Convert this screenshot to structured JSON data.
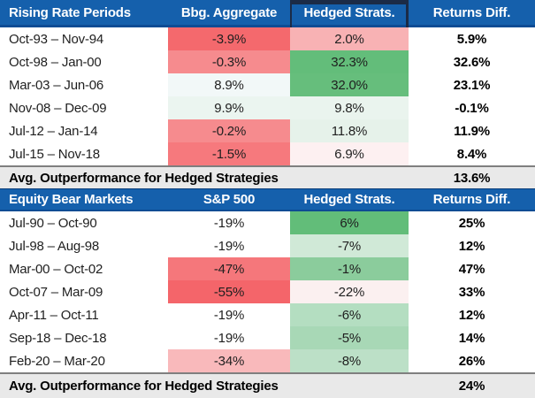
{
  "colors": {
    "header_bg": "#1560AC",
    "header_text": "#FFFFFF",
    "header_border": "#0E4C94",
    "dark_top_bar": "#1B2B47",
    "avg_row_bg": "#E9E9E9",
    "avg_row_border": "#7F7F7F",
    "strong_red": "#F4676C",
    "strong_green": "#62BD79"
  },
  "chart_data": [
    {
      "type": "table",
      "title": "Rising Rate Periods",
      "columns": [
        "Rising Rate Periods",
        "Bbg. Aggregate",
        "Hedged Strats.",
        "Returns Diff."
      ],
      "rows": [
        {
          "period": "Oct-93 – Nov-94",
          "benchmark": "-3.9%",
          "hedged": "2.0%",
          "diff": "5.9%",
          "benchmark_fill": "#F4696D",
          "hedged_fill": "#F8B2B4"
        },
        {
          "period": "Oct-98 – Jan-00",
          "benchmark": "-0.3%",
          "hedged": "32.3%",
          "diff": "32.6%",
          "benchmark_fill": "#F68B8E",
          "hedged_fill": "#63BD7A"
        },
        {
          "period": "Mar-03 – Jun-06",
          "benchmark": "8.9%",
          "hedged": "32.0%",
          "diff": "23.1%",
          "benchmark_fill": "#F2F8F8",
          "hedged_fill": "#66BE7C"
        },
        {
          "period": "Nov-08 – Dec-09",
          "benchmark": "9.9%",
          "hedged": "9.8%",
          "diff": "-0.1%",
          "benchmark_fill": "#EBF5F0",
          "hedged_fill": "#EAF4EE"
        },
        {
          "period": "Jul-12 – Jan-14",
          "benchmark": "-0.2%",
          "hedged": "11.8%",
          "diff": "11.9%",
          "benchmark_fill": "#F68B8E",
          "hedged_fill": "#E6F2EA"
        },
        {
          "period": "Jul-15 – Nov-18",
          "benchmark": "-1.5%",
          "hedged": "6.9%",
          "diff": "8.4%",
          "benchmark_fill": "#F6797D",
          "hedged_fill": "#FDF0F1"
        }
      ],
      "footer": {
        "label": "Avg. Outperformance for Hedged Strategies",
        "value": "13.6%"
      }
    },
    {
      "type": "table",
      "title": "Equity Bear Markets",
      "columns": [
        "Equity Bear Markets",
        "S&P 500",
        "Hedged Strats.",
        "Returns Diff."
      ],
      "rows": [
        {
          "period": "Jul-90 – Oct-90",
          "benchmark": "-19%",
          "hedged": "6%",
          "diff": "25%",
          "benchmark_fill": "#FFFFFF",
          "hedged_fill": "#62BD79"
        },
        {
          "period": "Jul-98 – Aug-98",
          "benchmark": "-19%",
          "hedged": "-7%",
          "diff": "12%",
          "benchmark_fill": "#FFFFFF",
          "hedged_fill": "#D0E9D7"
        },
        {
          "period": "Mar-00 – Oct-02",
          "benchmark": "-47%",
          "hedged": "-1%",
          "diff": "47%",
          "benchmark_fill": "#F5777B",
          "hedged_fill": "#8BCC9C"
        },
        {
          "period": "Oct-07 – Mar-09",
          "benchmark": "-55%",
          "hedged": "-22%",
          "diff": "33%",
          "benchmark_fill": "#F4656A",
          "hedged_fill": "#FBF0F0"
        },
        {
          "period": "Apr-11 – Oct-11",
          "benchmark": "-19%",
          "hedged": "-6%",
          "diff": "12%",
          "benchmark_fill": "#FFFFFF",
          "hedged_fill": "#B4DEC1"
        },
        {
          "period": "Sep-18 – Dec-18",
          "benchmark": "-19%",
          "hedged": "-5%",
          "diff": "14%",
          "benchmark_fill": "#FFFFFF",
          "hedged_fill": "#A8D8B6"
        },
        {
          "period": "Feb-20 – Mar-20",
          "benchmark": "-34%",
          "hedged": "-8%",
          "diff": "26%",
          "benchmark_fill": "#F9B9BB",
          "hedged_fill": "#BCE0C7"
        }
      ],
      "footer": {
        "label": "Avg. Outperformance for Hedged Strategies",
        "value": "24%"
      }
    }
  ]
}
